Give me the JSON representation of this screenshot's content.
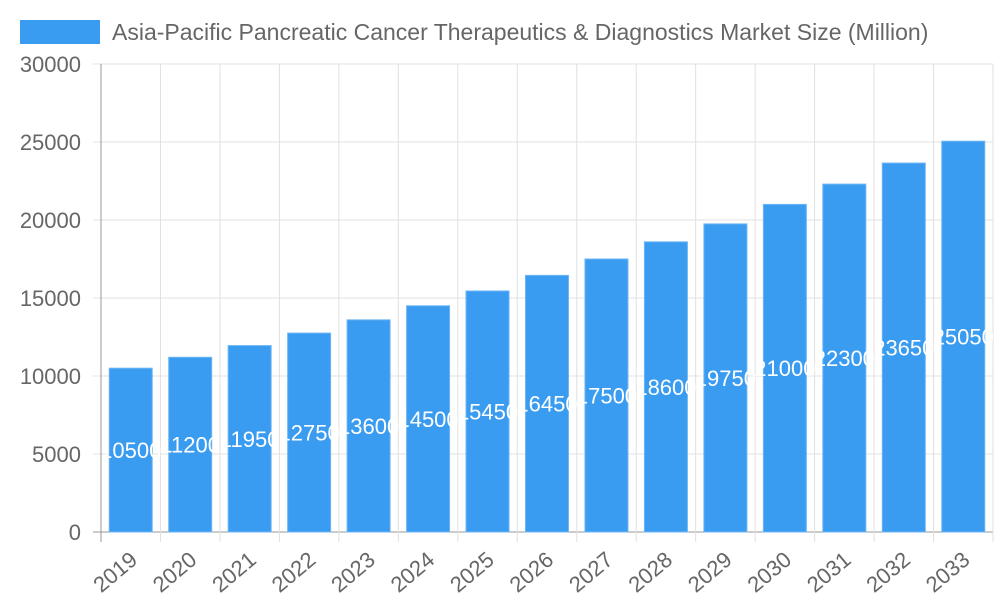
{
  "chart_data": {
    "type": "bar",
    "categories": [
      "2019",
      "2020",
      "2021",
      "2022",
      "2023",
      "2024",
      "2025",
      "2026",
      "2027",
      "2028",
      "2029",
      "2030",
      "2031",
      "2032",
      "2033"
    ],
    "series": [
      {
        "name": "Asia-Pacific Pancreatic Cancer Therapeutics & Diagnostics Market Size (Million)",
        "values": [
          10500,
          11200,
          11950,
          12750,
          13600,
          14500,
          15450,
          16450,
          17500,
          18600,
          19750,
          21000,
          22300,
          23650,
          25050
        ]
      }
    ],
    "ylim": [
      0,
      30000
    ],
    "yticks": [
      0,
      5000,
      10000,
      15000,
      20000,
      25000,
      30000
    ],
    "grid": true,
    "legend": "top",
    "data_labels": "center",
    "colors": {
      "bar": "#3a9cf0",
      "bar_border": "#6db6f5",
      "grid": "#e0e0e0",
      "text": "#666666",
      "label": "#ffffff"
    }
  }
}
